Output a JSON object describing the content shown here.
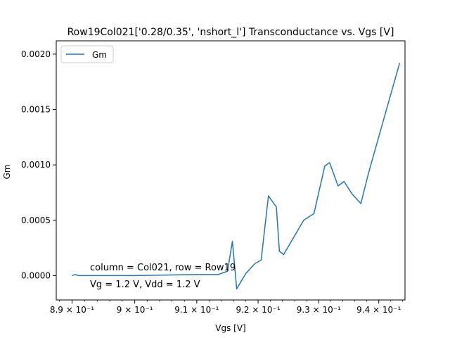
{
  "chart_data": {
    "type": "line",
    "title": "Row19Col021['0.28/0.35', 'nshort_l'] Transconductance vs. Vgs [V]",
    "xlabel": "Vgs [V]",
    "ylabel": "Gm",
    "x_scale": "log",
    "xlim": [
      0.8875,
      0.9444
    ],
    "ylim": [
      -0.00022,
      0.00212
    ],
    "grid": false,
    "legend_position": "top-left",
    "x_ticks": [
      {
        "value": 0.89,
        "label": "8.9 × 10⁻¹"
      },
      {
        "value": 0.9,
        "label": "9 × 10⁻¹"
      },
      {
        "value": 0.91,
        "label": "9.1 × 10⁻¹"
      },
      {
        "value": 0.92,
        "label": "9.2 × 10⁻¹"
      },
      {
        "value": 0.93,
        "label": "9.3 × 10⁻¹"
      },
      {
        "value": 0.94,
        "label": "9.4 × 10⁻¹"
      }
    ],
    "y_ticks": [
      {
        "value": 0.0,
        "label": "0.0000"
      },
      {
        "value": 0.0005,
        "label": "0.0005"
      },
      {
        "value": 0.001,
        "label": "0.0010"
      },
      {
        "value": 0.0015,
        "label": "0.0015"
      },
      {
        "value": 0.002,
        "label": "0.0020"
      }
    ],
    "series": [
      {
        "name": "Gm",
        "color": "#1f77b4",
        "x": [
          0.89,
          0.8905,
          0.891,
          0.9,
          0.91,
          0.9135,
          0.915,
          0.9158,
          0.9165,
          0.918,
          0.9195,
          0.9205,
          0.9217,
          0.923,
          0.9235,
          0.9242,
          0.9275,
          0.9292,
          0.931,
          0.9318,
          0.9332,
          0.9342,
          0.9355,
          0.937,
          0.9383,
          0.9435
        ],
        "y": [
          0.0,
          1e-05,
          0.0,
          0.0,
          1e-05,
          1e-05,
          4e-05,
          0.00031,
          -0.00012,
          2e-05,
          0.00011,
          0.00014,
          0.00072,
          0.00062,
          0.00022,
          0.00019,
          0.0005,
          0.00056,
          0.00099,
          0.00102,
          0.00081,
          0.00085,
          0.00074,
          0.00065,
          0.00093,
          0.00192
        ]
      }
    ],
    "annotations": [
      "column = Col021, row = Row19",
      "Vg = 1.2 V, Vdd = 1.2 V"
    ]
  }
}
